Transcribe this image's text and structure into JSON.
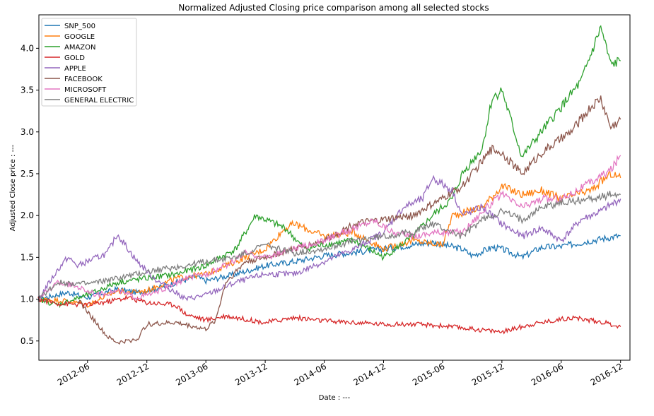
{
  "chart_data": {
    "type": "line",
    "title": "Normalized Adjusted Closing price comparison among all selected stocks",
    "xlabel": "Date : ---",
    "ylabel": "Adjusted Close price : ---",
    "xlim": [
      "2012-01-03",
      "2016-12-30"
    ],
    "ylim": [
      0.27,
      4.4
    ],
    "x_ticks": [
      "2012-06",
      "2012-12",
      "2013-06",
      "2013-12",
      "2014-06",
      "2014-12",
      "2015-06",
      "2015-12",
      "2016-06",
      "2016-12"
    ],
    "y_ticks": [
      0.5,
      1.0,
      1.5,
      2.0,
      2.5,
      3.0,
      3.5,
      4.0
    ],
    "grid": false,
    "legend_position": "upper-left",
    "series": [
      {
        "name": "SNP_500",
        "color": "#1f77b4",
        "points": [
          [
            "2012-01",
            1.0
          ],
          [
            "2012-04",
            1.08
          ],
          [
            "2012-06",
            1.02
          ],
          [
            "2012-09",
            1.12
          ],
          [
            "2012-11",
            1.08
          ],
          [
            "2013-01",
            1.13
          ],
          [
            "2013-05",
            1.27
          ],
          [
            "2013-06",
            1.22
          ],
          [
            "2013-09",
            1.3
          ],
          [
            "2013-12",
            1.4
          ],
          [
            "2014-03",
            1.45
          ],
          [
            "2014-06",
            1.52
          ],
          [
            "2014-09",
            1.56
          ],
          [
            "2014-12",
            1.6
          ],
          [
            "2015-03",
            1.65
          ],
          [
            "2015-05",
            1.68
          ],
          [
            "2015-08",
            1.6
          ],
          [
            "2015-09",
            1.52
          ],
          [
            "2015-11",
            1.62
          ],
          [
            "2015-12",
            1.6
          ],
          [
            "2016-02",
            1.5
          ],
          [
            "2016-04",
            1.62
          ],
          [
            "2016-06",
            1.63
          ],
          [
            "2016-09",
            1.7
          ],
          [
            "2016-12",
            1.76
          ]
        ]
      },
      {
        "name": "GOOGLE",
        "color": "#ff7f0e",
        "points": [
          [
            "2012-01",
            1.0
          ],
          [
            "2012-04",
            0.98
          ],
          [
            "2012-06",
            0.93
          ],
          [
            "2012-09",
            1.1
          ],
          [
            "2012-10",
            1.08
          ],
          [
            "2012-12",
            1.1
          ],
          [
            "2013-03",
            1.25
          ],
          [
            "2013-06",
            1.3
          ],
          [
            "2013-09",
            1.45
          ],
          [
            "2013-12",
            1.6
          ],
          [
            "2014-02",
            1.85
          ],
          [
            "2014-03",
            1.9
          ],
          [
            "2014-06",
            1.75
          ],
          [
            "2014-09",
            1.8
          ],
          [
            "2014-12",
            1.6
          ],
          [
            "2015-03",
            1.7
          ],
          [
            "2015-06",
            1.65
          ],
          [
            "2015-07",
            2.0
          ],
          [
            "2015-10",
            2.1
          ],
          [
            "2015-12",
            2.35
          ],
          [
            "2016-02",
            2.25
          ],
          [
            "2016-04",
            2.3
          ],
          [
            "2016-06",
            2.2
          ],
          [
            "2016-09",
            2.3
          ],
          [
            "2016-11",
            2.5
          ],
          [
            "2016-12",
            2.45
          ]
        ]
      },
      {
        "name": "AMAZON",
        "color": "#2ca02c",
        "points": [
          [
            "2012-01",
            1.0
          ],
          [
            "2012-03",
            0.93
          ],
          [
            "2012-06",
            1.05
          ],
          [
            "2012-09",
            1.2
          ],
          [
            "2012-12",
            1.25
          ],
          [
            "2013-03",
            1.3
          ],
          [
            "2013-06",
            1.4
          ],
          [
            "2013-09",
            1.6
          ],
          [
            "2013-11",
            2.0
          ],
          [
            "2013-12",
            1.95
          ],
          [
            "2014-02",
            1.85
          ],
          [
            "2014-04",
            1.6
          ],
          [
            "2014-06",
            1.65
          ],
          [
            "2014-09",
            1.7
          ],
          [
            "2014-12",
            1.5
          ],
          [
            "2015-03",
            1.75
          ],
          [
            "2015-05",
            2.0
          ],
          [
            "2015-07",
            2.2
          ],
          [
            "2015-08",
            2.5
          ],
          [
            "2015-10",
            2.8
          ],
          [
            "2015-11",
            3.4
          ],
          [
            "2015-12",
            3.5
          ],
          [
            "2016-02",
            2.7
          ],
          [
            "2016-04",
            3.0
          ],
          [
            "2016-06",
            3.3
          ],
          [
            "2016-08",
            3.6
          ],
          [
            "2016-10",
            4.25
          ],
          [
            "2016-11",
            3.8
          ],
          [
            "2016-12",
            3.85
          ]
        ]
      },
      {
        "name": "GOLD",
        "color": "#d62728",
        "points": [
          [
            "2012-01",
            1.0
          ],
          [
            "2012-03",
            0.95
          ],
          [
            "2012-06",
            0.93
          ],
          [
            "2012-08",
            0.97
          ],
          [
            "2012-10",
            1.02
          ],
          [
            "2012-12",
            0.96
          ],
          [
            "2013-03",
            0.93
          ],
          [
            "2013-04",
            0.82
          ],
          [
            "2013-06",
            0.75
          ],
          [
            "2013-08",
            0.8
          ],
          [
            "2013-12",
            0.72
          ],
          [
            "2014-03",
            0.78
          ],
          [
            "2014-06",
            0.74
          ],
          [
            "2014-09",
            0.72
          ],
          [
            "2014-12",
            0.7
          ],
          [
            "2015-03",
            0.7
          ],
          [
            "2015-06",
            0.68
          ],
          [
            "2015-11",
            0.62
          ],
          [
            "2015-12",
            0.61
          ],
          [
            "2016-03",
            0.7
          ],
          [
            "2016-07",
            0.78
          ],
          [
            "2016-10",
            0.73
          ],
          [
            "2016-12",
            0.67
          ]
        ]
      },
      {
        "name": "APPLE",
        "color": "#9467bd",
        "points": [
          [
            "2012-01",
            1.0
          ],
          [
            "2012-03",
            1.35
          ],
          [
            "2012-04",
            1.5
          ],
          [
            "2012-05",
            1.4
          ],
          [
            "2012-08",
            1.55
          ],
          [
            "2012-09",
            1.78
          ],
          [
            "2012-11",
            1.45
          ],
          [
            "2013-01",
            1.22
          ],
          [
            "2013-04",
            1.0
          ],
          [
            "2013-06",
            1.05
          ],
          [
            "2013-09",
            1.2
          ],
          [
            "2013-12",
            1.3
          ],
          [
            "2014-03",
            1.3
          ],
          [
            "2014-06",
            1.45
          ],
          [
            "2014-09",
            1.6
          ],
          [
            "2014-12",
            1.8
          ],
          [
            "2015-02",
            2.1
          ],
          [
            "2015-04",
            2.2
          ],
          [
            "2015-05",
            2.45
          ],
          [
            "2015-07",
            2.3
          ],
          [
            "2015-08",
            2.0
          ],
          [
            "2015-10",
            2.1
          ],
          [
            "2015-12",
            1.9
          ],
          [
            "2016-02",
            1.75
          ],
          [
            "2016-04",
            1.85
          ],
          [
            "2016-06",
            1.7
          ],
          [
            "2016-08",
            1.95
          ],
          [
            "2016-10",
            2.05
          ],
          [
            "2016-12",
            2.2
          ]
        ]
      },
      {
        "name": "FACEBOOK",
        "color": "#8c564b",
        "points": [
          [
            "2012-05",
            1.0
          ],
          [
            "2012-06",
            0.85
          ],
          [
            "2012-08",
            0.55
          ],
          [
            "2012-09",
            0.48
          ],
          [
            "2012-11",
            0.52
          ],
          [
            "2012-12",
            0.7
          ],
          [
            "2013-03",
            0.72
          ],
          [
            "2013-06",
            0.64
          ],
          [
            "2013-07",
            0.75
          ],
          [
            "2013-08",
            1.2
          ],
          [
            "2013-10",
            1.45
          ],
          [
            "2013-12",
            1.5
          ],
          [
            "2014-03",
            1.6
          ],
          [
            "2014-06",
            1.7
          ],
          [
            "2014-09",
            1.9
          ],
          [
            "2014-12",
            1.95
          ],
          [
            "2015-03",
            2.0
          ],
          [
            "2015-06",
            2.2
          ],
          [
            "2015-08",
            2.35
          ],
          [
            "2015-11",
            2.8
          ],
          [
            "2015-12",
            2.75
          ],
          [
            "2016-02",
            2.5
          ],
          [
            "2016-04",
            2.75
          ],
          [
            "2016-07",
            3.0
          ],
          [
            "2016-09",
            3.3
          ],
          [
            "2016-10",
            3.4
          ],
          [
            "2016-11",
            3.05
          ],
          [
            "2016-12",
            3.15
          ]
        ]
      },
      {
        "name": "MICROSOFT",
        "color": "#e377c2",
        "points": [
          [
            "2012-01",
            1.0
          ],
          [
            "2012-03",
            1.2
          ],
          [
            "2012-05",
            1.15
          ],
          [
            "2012-07",
            1.05
          ],
          [
            "2012-09",
            1.1
          ],
          [
            "2012-11",
            1.02
          ],
          [
            "2013-01",
            1.08
          ],
          [
            "2013-04",
            1.25
          ],
          [
            "2013-06",
            1.3
          ],
          [
            "2013-08",
            1.4
          ],
          [
            "2013-10",
            1.55
          ],
          [
            "2013-12",
            1.5
          ],
          [
            "2014-03",
            1.6
          ],
          [
            "2014-06",
            1.7
          ],
          [
            "2014-09",
            1.85
          ],
          [
            "2014-11",
            1.95
          ],
          [
            "2015-01",
            1.8
          ],
          [
            "2015-03",
            1.75
          ],
          [
            "2015-05",
            1.8
          ],
          [
            "2015-08",
            1.8
          ],
          [
            "2015-10",
            2.05
          ],
          [
            "2015-12",
            2.25
          ],
          [
            "2016-02",
            2.1
          ],
          [
            "2016-04",
            2.2
          ],
          [
            "2016-06",
            2.2
          ],
          [
            "2016-09",
            2.4
          ],
          [
            "2016-11",
            2.55
          ],
          [
            "2016-12",
            2.72
          ]
        ]
      },
      {
        "name": "GENERAL ELECTRIC",
        "color": "#7f7f7f",
        "points": [
          [
            "2012-01",
            1.0
          ],
          [
            "2012-03",
            1.2
          ],
          [
            "2012-06",
            1.18
          ],
          [
            "2012-09",
            1.25
          ],
          [
            "2012-11",
            1.3
          ],
          [
            "2013-01",
            1.35
          ],
          [
            "2013-04",
            1.4
          ],
          [
            "2013-06",
            1.45
          ],
          [
            "2013-09",
            1.5
          ],
          [
            "2013-12",
            1.65
          ],
          [
            "2014-03",
            1.55
          ],
          [
            "2014-06",
            1.6
          ],
          [
            "2014-09",
            1.7
          ],
          [
            "2014-12",
            1.75
          ],
          [
            "2015-03",
            1.8
          ],
          [
            "2015-05",
            1.9
          ],
          [
            "2015-08",
            1.75
          ],
          [
            "2015-10",
            1.95
          ],
          [
            "2015-12",
            2.05
          ],
          [
            "2016-02",
            1.95
          ],
          [
            "2016-04",
            2.1
          ],
          [
            "2016-06",
            2.15
          ],
          [
            "2016-09",
            2.2
          ],
          [
            "2016-11",
            2.25
          ],
          [
            "2016-12",
            2.25
          ]
        ]
      }
    ]
  }
}
